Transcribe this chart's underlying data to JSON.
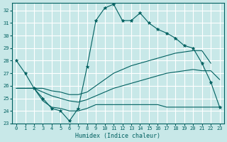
{
  "title": "",
  "xlabel": "Humidex (Indice chaleur)",
  "ylabel": "",
  "bg_color": "#c8e8e8",
  "grid_color": "#ffffff",
  "line_color": "#006060",
  "ylim": [
    23,
    32.6
  ],
  "xlim": [
    -0.5,
    23.5
  ],
  "yticks": [
    23,
    24,
    25,
    26,
    27,
    28,
    29,
    30,
    31,
    32
  ],
  "xticks": [
    0,
    1,
    2,
    3,
    4,
    5,
    6,
    7,
    8,
    9,
    10,
    11,
    12,
    13,
    14,
    15,
    16,
    17,
    18,
    19,
    20,
    21,
    22,
    23
  ],
  "series0_x": [
    0,
    1,
    2,
    3,
    4,
    5,
    6,
    7,
    8,
    9,
    10,
    11,
    12,
    13,
    14,
    15,
    16,
    17,
    18,
    19,
    20,
    21,
    22,
    23
  ],
  "series0_y": [
    28,
    27,
    25.8,
    25.0,
    24.2,
    24.0,
    23.2,
    24.2,
    27.5,
    31.2,
    32.2,
    32.5,
    31.2,
    31.2,
    31.8,
    31.0,
    30.5,
    30.2,
    29.8,
    29.2,
    29.0,
    27.8,
    26.3,
    24.3
  ],
  "series1_x": [
    0,
    2,
    3,
    4,
    5,
    6,
    7,
    8,
    9,
    10,
    11,
    12,
    13,
    14,
    15,
    16,
    17,
    18,
    19,
    20,
    21,
    22
  ],
  "series1_y": [
    25.8,
    25.8,
    25.8,
    25.6,
    25.5,
    25.3,
    25.3,
    25.5,
    26.0,
    26.5,
    27.0,
    27.3,
    27.6,
    27.8,
    28.0,
    28.2,
    28.4,
    28.6,
    28.7,
    28.8,
    28.8,
    27.8
  ],
  "series2_x": [
    0,
    2,
    3,
    4,
    5,
    6,
    7,
    8,
    9,
    10,
    11,
    12,
    13,
    14,
    15,
    16,
    17,
    18,
    19,
    20,
    21,
    22,
    23
  ],
  "series2_y": [
    25.8,
    25.8,
    25.5,
    25.2,
    25.0,
    24.8,
    24.7,
    24.9,
    25.2,
    25.5,
    25.8,
    26.0,
    26.2,
    26.4,
    26.6,
    26.8,
    27.0,
    27.1,
    27.2,
    27.3,
    27.2,
    27.2,
    26.5
  ],
  "series3_x": [
    2,
    3,
    4,
    5,
    6,
    7,
    8,
    9,
    10,
    11,
    12,
    13,
    14,
    15,
    16,
    17,
    18,
    19,
    20,
    21,
    22,
    23
  ],
  "series3_y": [
    25.8,
    24.8,
    24.3,
    24.2,
    24.0,
    24.0,
    24.2,
    24.5,
    24.5,
    24.5,
    24.5,
    24.5,
    24.5,
    24.5,
    24.5,
    24.3,
    24.3,
    24.3,
    24.3,
    24.3,
    24.3,
    24.3
  ]
}
